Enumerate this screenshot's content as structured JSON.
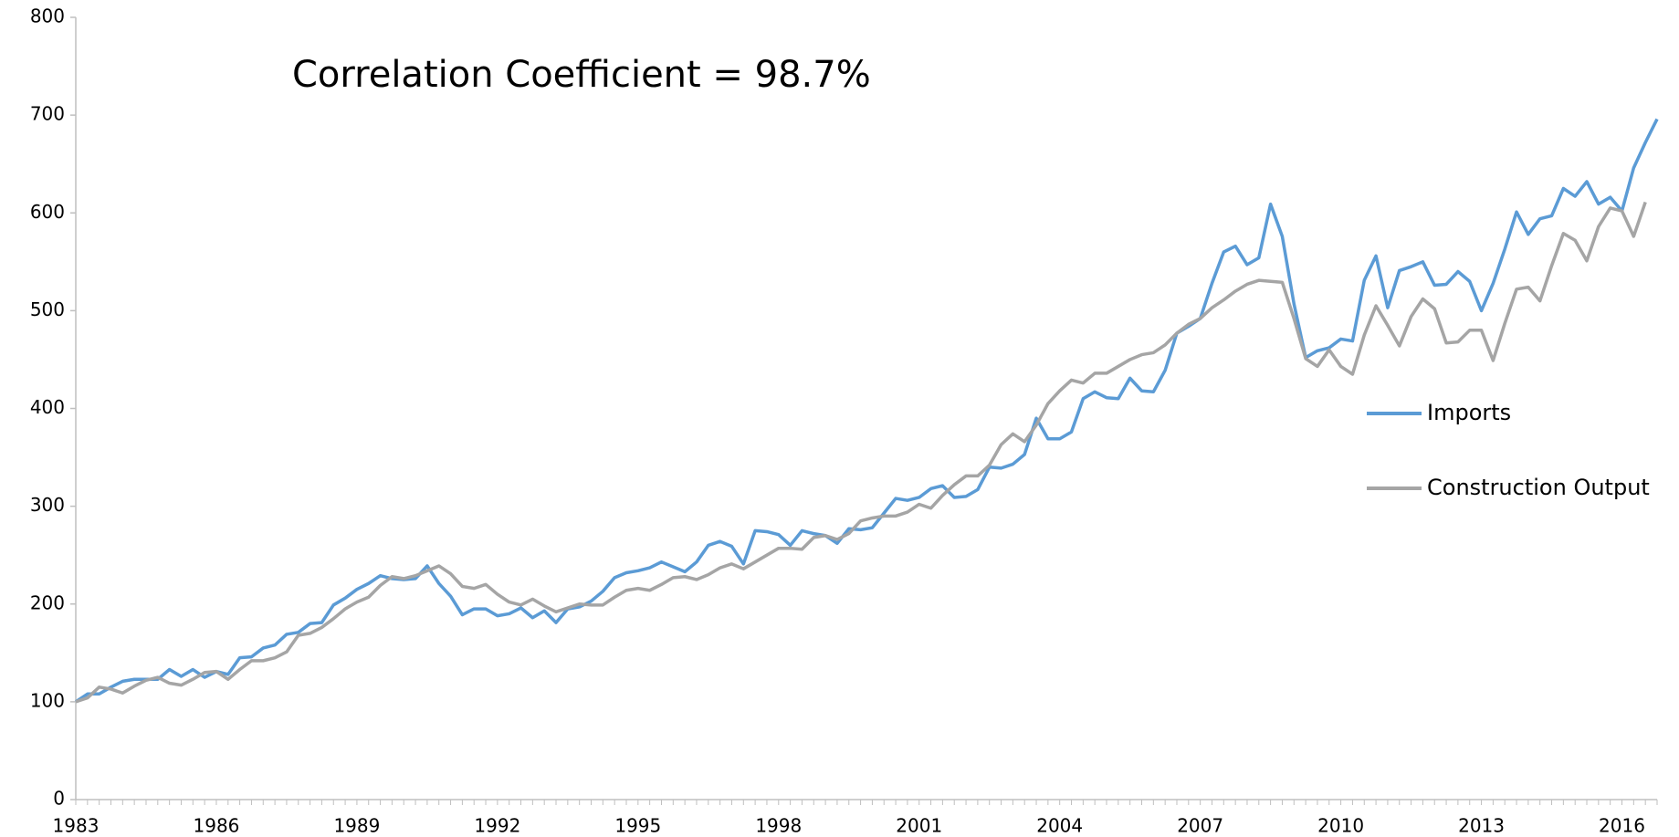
{
  "chart_data": {
    "type": "line",
    "annotation": "Correlation Coefficient = 98.7%",
    "categories": [
      "1983",
      null,
      null,
      null,
      null,
      null,
      null,
      null,
      null,
      null,
      null,
      null,
      "1986",
      null,
      null,
      null,
      null,
      null,
      null,
      null,
      null,
      null,
      null,
      null,
      "1989",
      null,
      null,
      null,
      null,
      null,
      null,
      null,
      null,
      null,
      null,
      null,
      "1992",
      null,
      null,
      null,
      null,
      null,
      null,
      null,
      null,
      null,
      null,
      null,
      "1995",
      null,
      null,
      null,
      null,
      null,
      null,
      null,
      null,
      null,
      null,
      null,
      "1998",
      null,
      null,
      null,
      null,
      null,
      null,
      null,
      null,
      null,
      null,
      null,
      "2001",
      null,
      null,
      null,
      null,
      null,
      null,
      null,
      null,
      null,
      null,
      null,
      "2004",
      null,
      null,
      null,
      null,
      null,
      null,
      null,
      null,
      null,
      null,
      null,
      "2007",
      null,
      null,
      null,
      null,
      null,
      null,
      null,
      null,
      null,
      null,
      null,
      "2010",
      null,
      null,
      null,
      null,
      null,
      null,
      null,
      null,
      null,
      null,
      null,
      "2013",
      null,
      null,
      null,
      null,
      null,
      null,
      null,
      null,
      null,
      null,
      null,
      "2016",
      null,
      null,
      null
    ],
    "series": [
      {
        "name": "Imports",
        "color": "#5b9bd5",
        "values": [
          100,
          108,
          108,
          115,
          121,
          123,
          123,
          123,
          133,
          126,
          133,
          125,
          131,
          128,
          145,
          146,
          155,
          158,
          169,
          171,
          180,
          181,
          199,
          206,
          215,
          221,
          229,
          226,
          225,
          226,
          239,
          221,
          208,
          189,
          195,
          195,
          188,
          190,
          196,
          186,
          193,
          181,
          195,
          197,
          203,
          213,
          227,
          232,
          234,
          237,
          243,
          238,
          233,
          243,
          260,
          264,
          259,
          241,
          275,
          274,
          271,
          260,
          275,
          272,
          270,
          262,
          277,
          276,
          278,
          293,
          308,
          306,
          309,
          318,
          321,
          309,
          310,
          317,
          340,
          339,
          343,
          353,
          390,
          369,
          369,
          376,
          410,
          417,
          411,
          410,
          431,
          418,
          417,
          439,
          477,
          484,
          492,
          528,
          560,
          566,
          547,
          554,
          609,
          576,
          507,
          452,
          459,
          462,
          471,
          469,
          531,
          556,
          503,
          541,
          545,
          550,
          526,
          527,
          540,
          530,
          500,
          528,
          563,
          601,
          578,
          594,
          597,
          625,
          617,
          632,
          609,
          616,
          602,
          646,
          672,
          696
        ]
      },
      {
        "name": "Construction Output",
        "color": "#a5a5a5",
        "values": [
          100,
          104,
          115,
          113,
          109,
          116,
          122,
          125,
          119,
          117,
          123,
          130,
          131,
          123,
          133,
          142,
          142,
          145,
          151,
          168,
          170,
          176,
          185,
          195,
          202,
          207,
          219,
          228,
          226,
          229,
          234,
          239,
          231,
          218,
          216,
          220,
          210,
          202,
          199,
          205,
          198,
          192,
          196,
          200,
          199,
          199,
          207,
          214,
          216,
          214,
          220,
          227,
          228,
          225,
          230,
          237,
          241,
          236,
          243,
          250,
          257,
          257,
          256,
          268,
          270,
          266,
          272,
          285,
          288,
          290,
          290,
          294,
          302,
          298,
          311,
          322,
          331,
          331,
          342,
          363,
          374,
          366,
          383,
          405,
          418,
          429,
          426,
          436,
          436,
          443,
          450,
          455,
          457,
          465,
          477,
          486,
          492,
          503,
          511,
          520,
          527,
          531,
          530,
          529,
          492,
          451,
          443,
          460,
          443,
          435,
          475,
          505,
          485,
          464,
          494,
          512,
          502,
          467,
          468,
          480,
          480,
          449,
          487,
          522,
          524,
          510,
          546,
          579,
          572,
          551,
          586,
          605,
          602,
          576,
          611,
          null
        ]
      }
    ],
    "ylim": [
      0,
      800
    ],
    "yticks": [
      0,
      100,
      200,
      300,
      400,
      500,
      600,
      700,
      800
    ],
    "grid": false,
    "legend": "right"
  }
}
